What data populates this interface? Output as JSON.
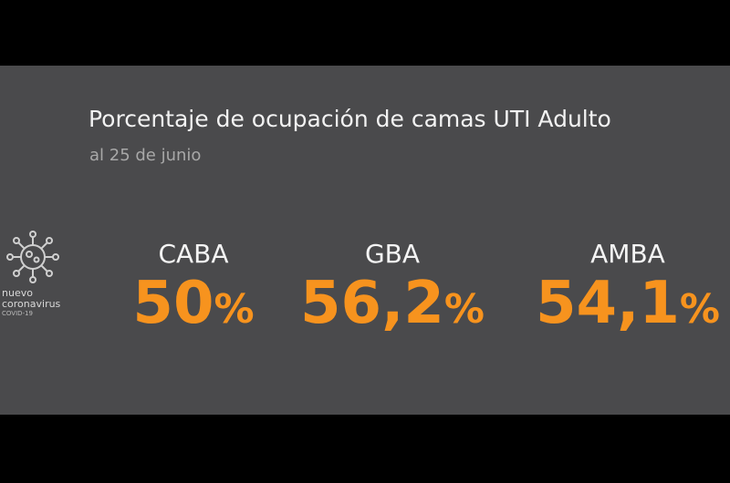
{
  "header": {
    "title": "Porcentaje de ocupación de camas UTI Adulto",
    "subtitle": "al 25 de junio"
  },
  "logo": {
    "line1": "nuevo",
    "line2": "coronavirus",
    "line3": "COVID-19"
  },
  "items": [
    {
      "region": "CABA",
      "value": "50",
      "unit": "%"
    },
    {
      "region": "GBA",
      "value": "56,2",
      "unit": "%"
    },
    {
      "region": "AMBA",
      "value": "54,1",
      "unit": "%"
    }
  ]
}
